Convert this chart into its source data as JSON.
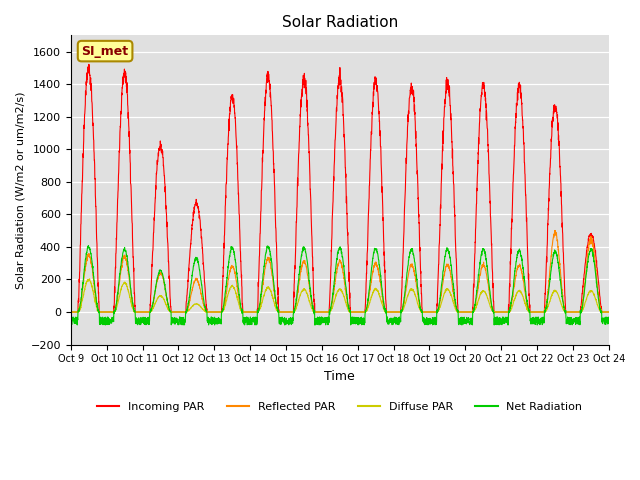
{
  "title": "Solar Radiation",
  "ylabel": "Solar Radiation (W/m2 or um/m2/s)",
  "xlabel": "Time",
  "ylim": [
    -200,
    1700
  ],
  "yticks": [
    -200,
    0,
    200,
    400,
    600,
    800,
    1000,
    1200,
    1400,
    1600
  ],
  "n_days": 15,
  "x_tick_positions": [
    0,
    1,
    2,
    3,
    4,
    5,
    6,
    7,
    8,
    9,
    10,
    11,
    12,
    13,
    14,
    15
  ],
  "x_tick_labels": [
    "Oct 9",
    "Oct 10",
    "Oct 11",
    "Oct 12",
    "Oct 13",
    "Oct 14",
    "Oct 15",
    "Oct 16",
    "Oct 17",
    "Oct 18",
    "Oct 19",
    "Oct 20",
    "Oct 21",
    "Oct 22",
    "Oct 23",
    "Oct 24"
  ],
  "colors": {
    "incoming": "#ff0000",
    "reflected": "#ff8800",
    "diffuse": "#cccc00",
    "net": "#00cc00"
  },
  "background": "#e0e0e0",
  "grid_color": "#ffffff",
  "legend_label": "SI_met",
  "legend_bg": "#ffff99",
  "legend_border": "#aa8800",
  "peaks_incoming": [
    1500,
    1460,
    1030,
    670,
    1330,
    1450,
    1435,
    1430,
    1420,
    1390,
    1400,
    1400,
    1390,
    1270,
    480
  ],
  "peaks_net": [
    400,
    385,
    255,
    330,
    395,
    400,
    395,
    395,
    390,
    385,
    385,
    385,
    380,
    370,
    385
  ],
  "peaks_reflected": [
    350,
    340,
    240,
    200,
    280,
    330,
    310,
    310,
    300,
    290,
    290,
    290,
    285,
    490,
    450
  ],
  "peaks_diffuse": [
    200,
    180,
    100,
    50,
    160,
    150,
    140,
    140,
    140,
    140,
    140,
    130,
    130,
    130,
    130
  ]
}
